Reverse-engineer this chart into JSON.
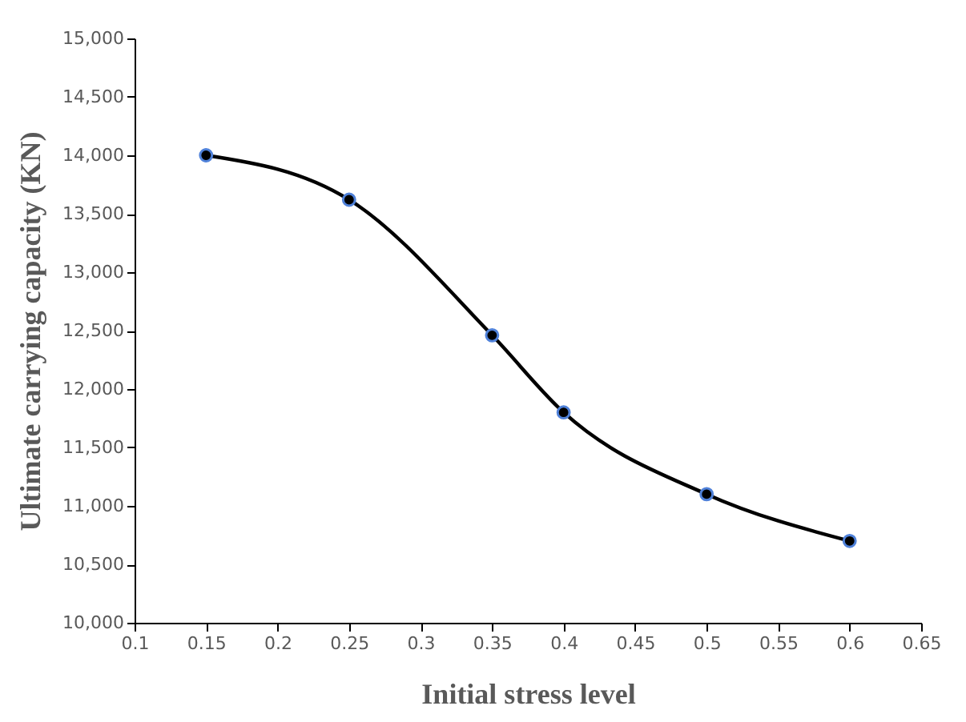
{
  "chart_data": {
    "type": "line",
    "xlabel": "Initial stress level",
    "ylabel": "Ultimate carrying capacity (KN)",
    "x": [
      0.15,
      0.25,
      0.35,
      0.4,
      0.5,
      0.6
    ],
    "series": [
      {
        "color": "#000000",
        "values": [
          14000,
          13620,
          12460,
          11800,
          11100,
          10700
        ]
      }
    ],
    "xlim": [
      0.1,
      0.65
    ],
    "xticks": [
      0.1,
      0.15,
      0.2,
      0.25,
      0.3,
      0.35,
      0.4,
      0.45,
      0.5,
      0.55,
      0.6,
      0.65
    ],
    "ylim": [
      10000,
      15000
    ],
    "yticks": [
      {
        "value": 10000,
        "label": "10,000"
      },
      {
        "value": 10500,
        "label": "10,500"
      },
      {
        "value": 11000,
        "label": "11,000"
      },
      {
        "value": 11500,
        "label": "11,500"
      },
      {
        "value": 12000,
        "label": "12,000"
      },
      {
        "value": 12500,
        "label": "12,500"
      },
      {
        "value": 13000,
        "label": "13,000"
      },
      {
        "value": 13500,
        "label": "13,500"
      },
      {
        "value": 14000,
        "label": "14,000"
      },
      {
        "value": 14500,
        "label": "14,500"
      },
      {
        "value": 15000,
        "label": "15,000"
      }
    ],
    "marker": "circle",
    "line_style": "solid"
  }
}
